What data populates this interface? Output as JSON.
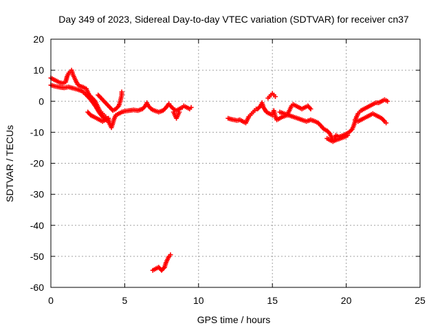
{
  "chart_data": {
    "type": "scatter",
    "title": "Day 349 of 2023, Sidereal Day-to-day VTEC variation (SDTVAR) for receiver cn37",
    "xlabel": "GPS time / hours",
    "ylabel": "SDTVAR / TECUs",
    "xlim": [
      0,
      25
    ],
    "ylim": [
      -60,
      20
    ],
    "x_ticks": [
      0,
      5,
      10,
      15,
      20,
      25
    ],
    "y_ticks": [
      -60,
      -50,
      -40,
      -30,
      -20,
      -10,
      0,
      10,
      20
    ],
    "grid": true,
    "marker": "+",
    "series": [
      {
        "name": "cn37",
        "color": "#ff0000",
        "segments": [
          [
            [
              0.0,
              7.5
            ],
            [
              0.2,
              7.0
            ],
            [
              0.4,
              6.5
            ],
            [
              0.6,
              6.0
            ],
            [
              0.8,
              5.8
            ],
            [
              1.0,
              6.2
            ],
            [
              1.1,
              8.0
            ],
            [
              1.2,
              9.0
            ],
            [
              1.3,
              9.5
            ],
            [
              1.4,
              10.0
            ],
            [
              1.5,
              8.5
            ],
            [
              1.6,
              7.5
            ],
            [
              1.7,
              6.5
            ],
            [
              1.8,
              5.5
            ],
            [
              2.0,
              4.8
            ],
            [
              2.2,
              4.5
            ],
            [
              2.4,
              4.0
            ],
            [
              2.5,
              3.0
            ],
            [
              2.6,
              2.0
            ],
            [
              2.8,
              1.0
            ],
            [
              3.0,
              0.0
            ],
            [
              3.1,
              -1.0
            ],
            [
              3.2,
              -2.0
            ],
            [
              3.3,
              -3.0
            ],
            [
              3.4,
              -3.5
            ],
            [
              3.5,
              -4.0
            ],
            [
              3.6,
              -4.5
            ],
            [
              3.7,
              -5.0
            ],
            [
              3.8,
              -5.5
            ],
            [
              3.9,
              -6.0
            ],
            [
              4.0,
              -7.5
            ],
            [
              4.1,
              -8.5
            ],
            [
              4.2,
              -7.0
            ],
            [
              4.3,
              -5.5
            ],
            [
              4.4,
              -4.5
            ],
            [
              4.6,
              -4.0
            ],
            [
              4.8,
              -3.5
            ],
            [
              5.0,
              -3.2
            ],
            [
              5.3,
              -3.0
            ],
            [
              5.6,
              -2.8
            ],
            [
              5.9,
              -3.0
            ],
            [
              6.2,
              -2.5
            ],
            [
              6.4,
              -1.5
            ],
            [
              6.5,
              -0.5
            ],
            [
              6.6,
              -1.5
            ],
            [
              6.8,
              -2.5
            ],
            [
              7.0,
              -3.0
            ],
            [
              7.3,
              -3.5
            ],
            [
              7.6,
              -3.0
            ],
            [
              7.8,
              -2.0
            ],
            [
              8.0,
              -0.8
            ],
            [
              8.1,
              -1.5
            ],
            [
              8.3,
              -2.5
            ],
            [
              8.5,
              -3.0
            ],
            [
              8.7,
              -2.5
            ],
            [
              8.9,
              -2.0
            ],
            [
              9.0,
              -1.5
            ],
            [
              9.2,
              -2.0
            ],
            [
              9.4,
              -2.5
            ],
            [
              9.5,
              -2.0
            ]
          ],
          [
            [
              0.0,
              5.2
            ],
            [
              0.3,
              4.8
            ],
            [
              0.6,
              4.5
            ],
            [
              0.9,
              4.3
            ],
            [
              1.2,
              4.6
            ],
            [
              1.5,
              4.2
            ],
            [
              1.8,
              3.8
            ],
            [
              2.1,
              3.3
            ],
            [
              2.3,
              2.5
            ],
            [
              2.5,
              1.5
            ],
            [
              2.7,
              0.5
            ],
            [
              2.9,
              -0.8
            ],
            [
              3.1,
              -2.2
            ],
            [
              3.3,
              -3.8
            ],
            [
              3.5,
              -5.0
            ],
            [
              3.7,
              -6.0
            ],
            [
              3.9,
              -6.5
            ]
          ],
          [
            [
              2.5,
              -3.5
            ],
            [
              2.7,
              -4.5
            ],
            [
              2.9,
              -5.0
            ],
            [
              3.1,
              -5.5
            ],
            [
              3.3,
              -6.0
            ],
            [
              3.5,
              -6.5
            ],
            [
              3.7,
              -6.0
            ],
            [
              3.9,
              -5.5
            ]
          ],
          [
            [
              3.2,
              2.0
            ],
            [
              3.4,
              1.0
            ],
            [
              3.6,
              0.0
            ],
            [
              3.8,
              -1.0
            ],
            [
              4.0,
              -2.0
            ],
            [
              4.2,
              -3.0
            ],
            [
              4.4,
              -2.5
            ],
            [
              4.6,
              -1.5
            ],
            [
              4.7,
              0.0
            ],
            [
              4.8,
              2.0
            ],
            [
              4.8,
              3.0
            ]
          ],
          [
            [
              8.3,
              -3.5
            ],
            [
              8.4,
              -4.5
            ],
            [
              8.5,
              -5.5
            ],
            [
              8.6,
              -4.5
            ],
            [
              8.7,
              -3.5
            ]
          ],
          [
            [
              6.9,
              -54.5
            ],
            [
              7.1,
              -54.0
            ],
            [
              7.3,
              -53.5
            ],
            [
              7.5,
              -54.5
            ],
            [
              7.7,
              -53.5
            ],
            [
              7.8,
              -52.0
            ],
            [
              7.9,
              -51.0
            ],
            [
              8.0,
              -50.0
            ],
            [
              8.1,
              -49.5
            ]
          ],
          [
            [
              12.0,
              -5.5
            ],
            [
              12.2,
              -5.8
            ],
            [
              12.4,
              -6.0
            ],
            [
              12.6,
              -6.2
            ],
            [
              12.8,
              -6.0
            ],
            [
              13.0,
              -6.5
            ],
            [
              13.2,
              -7.0
            ],
            [
              13.3,
              -6.0
            ],
            [
              13.4,
              -5.0
            ],
            [
              13.5,
              -4.5
            ],
            [
              13.6,
              -4.0
            ],
            [
              13.7,
              -3.5
            ],
            [
              13.8,
              -3.0
            ],
            [
              13.9,
              -2.5
            ]
          ],
          [
            [
              14.0,
              -2.5
            ],
            [
              14.2,
              -1.5
            ],
            [
              14.3,
              -0.5
            ],
            [
              14.4,
              -2.0
            ],
            [
              14.6,
              -3.5
            ],
            [
              14.8,
              -4.0
            ],
            [
              15.0,
              -4.5
            ],
            [
              15.1,
              -3.0
            ],
            [
              15.2,
              -5.0
            ],
            [
              15.3,
              -6.0
            ],
            [
              15.5,
              -5.5
            ],
            [
              15.7,
              -5.0
            ],
            [
              16.0,
              -4.5
            ],
            [
              16.1,
              -3.5
            ],
            [
              16.2,
              -2.5
            ],
            [
              16.3,
              -1.5
            ],
            [
              16.4,
              -1.0
            ],
            [
              16.6,
              -1.5
            ],
            [
              16.8,
              -2.0
            ],
            [
              17.0,
              -2.5
            ],
            [
              17.2,
              -2.0
            ],
            [
              17.4,
              -1.5
            ],
            [
              17.6,
              -2.5
            ]
          ],
          [
            [
              14.7,
              1.0
            ],
            [
              14.8,
              1.5
            ],
            [
              14.9,
              2.0
            ],
            [
              15.0,
              2.5
            ],
            [
              15.1,
              2.0
            ],
            [
              15.2,
              1.5
            ]
          ],
          [
            [
              15.5,
              -3.5
            ],
            [
              15.8,
              -4.0
            ],
            [
              16.1,
              -4.5
            ],
            [
              16.4,
              -5.0
            ],
            [
              16.7,
              -5.5
            ],
            [
              17.0,
              -6.0
            ],
            [
              17.3,
              -6.5
            ],
            [
              17.6,
              -6.0
            ],
            [
              17.9,
              -6.5
            ],
            [
              18.1,
              -7.0
            ],
            [
              18.3,
              -8.0
            ],
            [
              18.5,
              -9.0
            ],
            [
              18.7,
              -9.5
            ],
            [
              18.9,
              -10.5
            ],
            [
              19.0,
              -11.5
            ],
            [
              19.1,
              -12.5
            ],
            [
              19.2,
              -12.0
            ],
            [
              19.3,
              -11.0
            ],
            [
              19.5,
              -11.5
            ],
            [
              19.8,
              -11.0
            ],
            [
              20.0,
              -10.5
            ],
            [
              20.2,
              -10.0
            ],
            [
              20.4,
              -9.0
            ],
            [
              20.5,
              -8.0
            ],
            [
              20.6,
              -6.5
            ],
            [
              20.7,
              -5.0
            ],
            [
              20.8,
              -4.0
            ],
            [
              20.9,
              -3.5
            ],
            [
              21.0,
              -3.0
            ],
            [
              21.2,
              -2.5
            ],
            [
              21.4,
              -2.0
            ],
            [
              21.6,
              -1.5
            ],
            [
              21.8,
              -1.0
            ],
            [
              22.0,
              -0.5
            ],
            [
              22.2,
              -0.5
            ],
            [
              22.4,
              0.0
            ],
            [
              22.6,
              0.5
            ],
            [
              22.8,
              0.0
            ]
          ],
          [
            [
              20.6,
              -6.0
            ],
            [
              20.8,
              -6.5
            ],
            [
              21.0,
              -6.0
            ],
            [
              21.2,
              -5.5
            ],
            [
              21.4,
              -5.0
            ],
            [
              21.6,
              -4.5
            ],
            [
              21.8,
              -4.0
            ],
            [
              22.0,
              -4.5
            ],
            [
              22.2,
              -5.0
            ],
            [
              22.4,
              -5.5
            ],
            [
              22.6,
              -6.5
            ],
            [
              22.7,
              -7.0
            ]
          ],
          [
            [
              18.7,
              -12.0
            ],
            [
              18.9,
              -12.5
            ],
            [
              19.1,
              -13.0
            ],
            [
              19.3,
              -12.5
            ],
            [
              19.6,
              -12.0
            ],
            [
              19.9,
              -11.5
            ],
            [
              20.1,
              -11.0
            ]
          ]
        ]
      }
    ]
  }
}
